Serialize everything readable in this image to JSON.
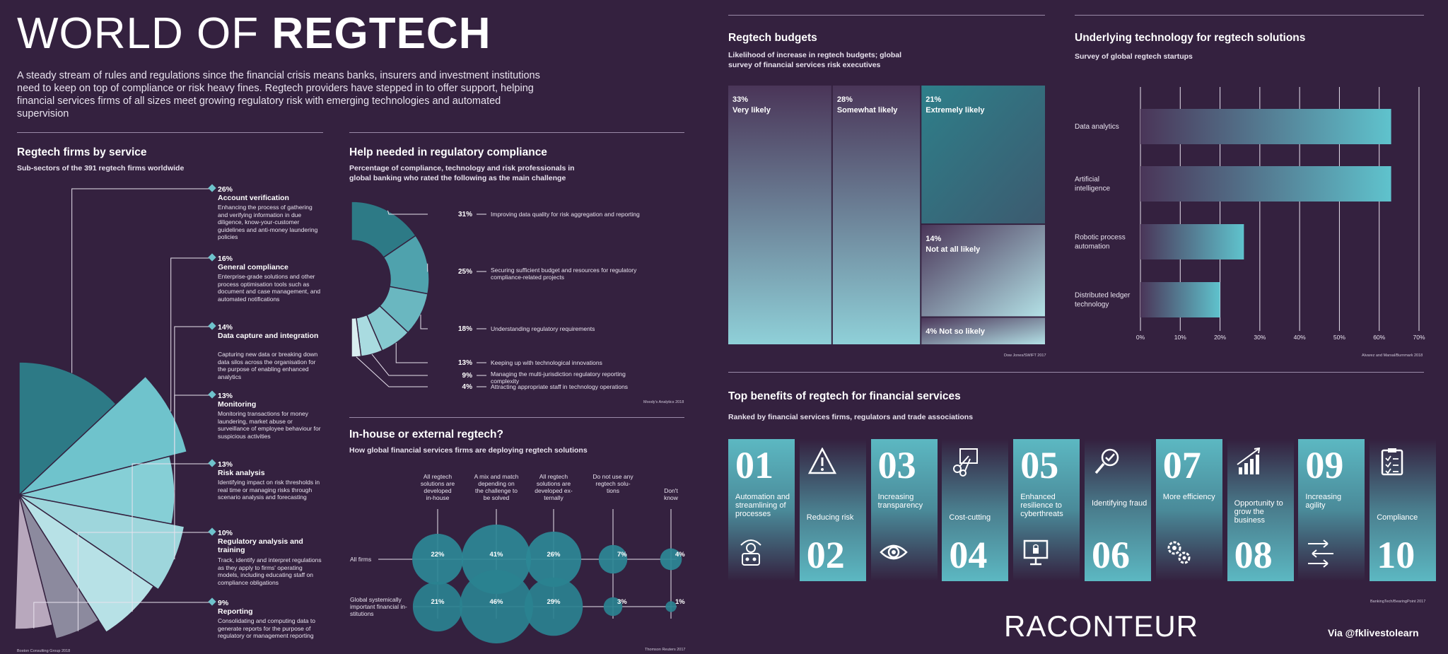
{
  "header": {
    "title_light": "WORLD OF",
    "title_bold": "REGTECH",
    "intro": "A steady stream of rules and regulations since the financial crisis means banks, insurers and investment institutions need to keep on top of compliance or risk heavy fines. Regtech providers have stepped in to offer support, helping financial services firms of all sizes meet growing regulatory risk with emerging technologies and automated supervision"
  },
  "firms": {
    "title": "Regtech firms by service",
    "subtitle": "Sub-sectors of the 391 regtech firms worldwide",
    "source": "Boston Consulting Group 2018"
  },
  "help": {
    "title": "Help needed in regulatory compliance",
    "subtitle": "Percentage of compliance, technology and risk professionals in global banking who rated the following as the main challenge",
    "source": "Moody's Analytics 2018"
  },
  "inhouse": {
    "title": "In-house or external regtech?",
    "subtitle": "How global financial services firms are deploying regtech solutions",
    "source": "Thomson Reuters 2017"
  },
  "budgets": {
    "title": "Regtech budgets",
    "subtitle": "Likelihood of increase in regtech budgets; global survey of financial services risk executives",
    "source": "Dow Jones/SWIFT 2017"
  },
  "underlying": {
    "title": "Underlying technology for regtech solutions",
    "subtitle": "Survey of global regtech startups",
    "source": "Alvarez and Marsal/Burnmark 2018"
  },
  "benefits": {
    "title": "Top benefits of regtech for financial services",
    "subtitle": "Ranked by financial services firms, regulators and trade associations",
    "source": "BankingTech/BearingPoint 2017",
    "colors": {
      "teal": "#5cb8c2",
      "tealDark": "#2f7d88",
      "bg": "#34213f"
    },
    "items": [
      {
        "num": "01",
        "label": "Automation and streamlining of processes",
        "icon": "robot-icon"
      },
      {
        "num": "02",
        "label": "Reducing risk",
        "icon": "warning-icon"
      },
      {
        "num": "03",
        "label": "Increasing transparency",
        "icon": "eye-icon"
      },
      {
        "num": "04",
        "label": "Cost-cutting",
        "icon": "scissors-icon"
      },
      {
        "num": "05",
        "label": "Enhanced resilience to cyberthreats",
        "icon": "computer-lock-icon"
      },
      {
        "num": "06",
        "label": "Identifying fraud",
        "icon": "magnifier-icon"
      },
      {
        "num": "07",
        "label": "More efficiency",
        "icon": "gears-icon"
      },
      {
        "num": "08",
        "label": "Opportunity to grow the business",
        "icon": "growth-chart-icon"
      },
      {
        "num": "09",
        "label": "Increasing agility",
        "icon": "arrows-icon"
      },
      {
        "num": "10",
        "label": "Compliance",
        "icon": "clipboard-icon"
      }
    ]
  },
  "footer": {
    "logo": "RACONTEUR",
    "via": "Via @fklivestolearn"
  },
  "chart_data": [
    {
      "id": "firms",
      "type": "pie",
      "title": "Regtech firms by service",
      "categories": [
        "Account verification",
        "General compliance",
        "Data capture and integration",
        "Monitoring",
        "Risk analysis",
        "Regulatory analysis and training",
        "Reporting"
      ],
      "values": [
        26,
        16,
        14,
        13,
        13,
        10,
        9
      ],
      "value_labels": [
        "26%",
        "16%",
        "14%",
        "13%",
        "13%",
        "10%",
        "9%"
      ],
      "descriptions": [
        "Enhancing the process of gathering and verifying information in due diligence, know-your-customer guidelines and anti-money laundering policies",
        "Enterprise-grade solutions and other process optimisation tools such as document and case management, and automated notifications",
        "Capturing new data or breaking down data silos across the organisation for the purpose of enabling enhanced analytics",
        "Monitoring transactions for money laundering, market abuse or surveillance of employee behaviour for suspicious activities",
        "Identifying impact on risk thresholds in real time or managing risks through scenario analysis and forecasting",
        "Track, identify and interpret regulations as they apply to firms' operating models, including educating staff on compliance obligations",
        "Consolidating and computing data to generate reports for the purpose of regulatory or management reporting"
      ]
    },
    {
      "id": "help",
      "type": "pie",
      "title": "Help needed in regulatory compliance",
      "categories": [
        "Improving data quality for risk aggregation and reporting",
        "Securing sufficient budget and resources for regulatory compliance-related projects",
        "Understanding regulatory requirements",
        "Keeping up with technological innovations",
        "Managing the multi-jurisdiction regulatory reporting complexity",
        "Attracting appropriate staff in technology operations"
      ],
      "values": [
        31,
        25,
        18,
        13,
        9,
        4
      ],
      "value_labels": [
        "31%",
        "25%",
        "18%",
        "13%",
        "9%",
        "4%"
      ]
    },
    {
      "id": "inhouse",
      "type": "scatter",
      "title": "In-house or external regtech?",
      "categories": [
        "All regtech solutions are developed in-house",
        "A mix and match depending on the challenge to be solved",
        "All regtech solutions are developed externally",
        "Do not use any regtech solutions",
        "Don't know"
      ],
      "series": [
        {
          "name": "All firms",
          "values": [
            22,
            41,
            26,
            7,
            4
          ],
          "value_labels": [
            "22%",
            "41%",
            "26%",
            "7%",
            "4%"
          ]
        },
        {
          "name": "Global systemically important financial institutions",
          "values": [
            21,
            46,
            29,
            3,
            1
          ],
          "value_labels": [
            "21%",
            "46%",
            "29%",
            "3%",
            "1%"
          ]
        }
      ]
    },
    {
      "id": "budgets",
      "type": "table",
      "title": "Regtech budgets",
      "categories": [
        "Very likely",
        "Somewhat likely",
        "Extremely likely",
        "Not at all likely",
        "Not so likely"
      ],
      "values": [
        33,
        28,
        21,
        14,
        4
      ],
      "value_labels": [
        "33%",
        "28%",
        "21%",
        "14%",
        "4%"
      ]
    },
    {
      "id": "underlying",
      "type": "bar",
      "title": "Underlying technology for regtech solutions",
      "categories": [
        "Data analytics",
        "Artificial intelligence",
        "Robotic process automation",
        "Distributed ledger technology"
      ],
      "values": [
        63,
        63,
        26,
        20
      ],
      "xlim": [
        0,
        70
      ],
      "ticks": [
        "0%",
        "10%",
        "20%",
        "30%",
        "40%",
        "50%",
        "60%",
        "70%"
      ],
      "grid": true
    }
  ]
}
